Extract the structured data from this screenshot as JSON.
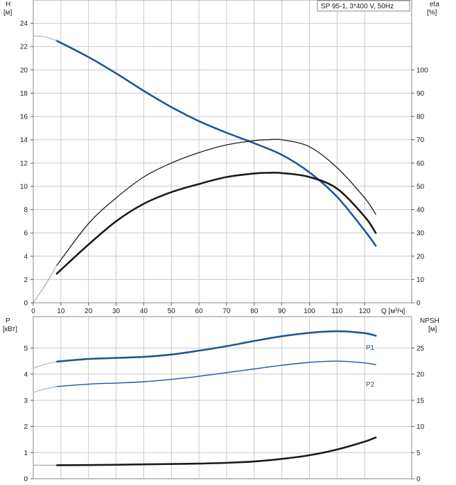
{
  "chart_data": [
    {
      "type": "line",
      "title": "SP 95-1, 3*400 V, 50Hz",
      "left_axis": {
        "label_lines": [
          "H",
          "[м]"
        ],
        "range": [
          0,
          26
        ],
        "ticks": [
          0,
          2,
          4,
          6,
          8,
          10,
          12,
          14,
          16,
          18,
          20,
          22,
          24
        ]
      },
      "right_axis": {
        "label_lines": [
          "eta",
          "[%]"
        ],
        "range": [
          0,
          130
        ],
        "ticks": [
          0,
          10,
          20,
          30,
          40,
          50,
          60,
          70,
          80,
          90,
          100
        ]
      },
      "x_axis": {
        "label": "Q [м³/ч]",
        "range": [
          0,
          137
        ],
        "ticks": [
          0,
          10,
          20,
          30,
          40,
          50,
          60,
          70,
          80,
          90,
          100,
          110,
          120
        ]
      },
      "grid": true,
      "series": [
        {
          "name": "",
          "axis": "left",
          "color": "#1f5596",
          "width": 2.6,
          "x": [
            8.5,
            20,
            30,
            40,
            50,
            60,
            70,
            80,
            90,
            100,
            110,
            120,
            124
          ],
          "y": [
            22.5,
            21.1,
            19.7,
            18.2,
            16.8,
            15.6,
            14.6,
            13.7,
            12.7,
            11.2,
            9.1,
            6.2,
            4.9
          ]
        },
        {
          "name": "",
          "axis": "left",
          "color": "#9aa8bb",
          "width": 1,
          "x": [
            0,
            4,
            8.5
          ],
          "y": [
            22.9,
            22.85,
            22.5
          ]
        },
        {
          "name": "",
          "axis": "right",
          "color": "#1a1a1a",
          "width": 1.3,
          "x": [
            8.5,
            20,
            30,
            40,
            50,
            60,
            70,
            80,
            85,
            90,
            100,
            110,
            120,
            124
          ],
          "y": [
            16,
            34,
            45,
            54,
            60,
            64.5,
            67.8,
            69.6,
            70,
            70,
            67,
            58,
            45,
            38
          ]
        },
        {
          "name": "",
          "axis": "right",
          "color": "#9a9a9a",
          "width": 1,
          "x": [
            0,
            4,
            8.5
          ],
          "y": [
            0,
            7,
            16
          ]
        },
        {
          "name": "",
          "axis": "right",
          "color": "#1a1a1a",
          "width": 2.6,
          "x": [
            8.5,
            20,
            30,
            40,
            50,
            60,
            70,
            80,
            85,
            90,
            100,
            110,
            120,
            124
          ],
          "y": [
            12.5,
            25,
            35,
            42.5,
            47.5,
            51,
            54,
            55.5,
            55.8,
            55.7,
            54,
            49,
            37,
            30
          ]
        }
      ]
    },
    {
      "type": "line",
      "left_axis": {
        "label_lines": [
          "P",
          "[кВт]"
        ],
        "range": [
          0,
          6.2
        ],
        "ticks": [
          0,
          1,
          2,
          3,
          4,
          5
        ]
      },
      "right_axis": {
        "label_lines": [
          "NPSH",
          "[м]"
        ],
        "range": [
          0,
          31
        ],
        "ticks": [
          0,
          5,
          10,
          15,
          20,
          25
        ]
      },
      "x_axis": {
        "range": [
          0,
          137
        ]
      },
      "grid": true,
      "series": [
        {
          "name": "P1",
          "axis": "left",
          "color": "#1f5596",
          "width": 2.6,
          "x": [
            8.5,
            20,
            30,
            40,
            50,
            60,
            70,
            80,
            90,
            100,
            110,
            120,
            124
          ],
          "y": [
            4.48,
            4.58,
            4.62,
            4.66,
            4.75,
            4.9,
            5.07,
            5.27,
            5.45,
            5.58,
            5.64,
            5.57,
            5.47
          ]
        },
        {
          "name": "",
          "axis": "left",
          "color": "#9aa8bb",
          "width": 1,
          "x": [
            0,
            4,
            8.5
          ],
          "y": [
            4.23,
            4.37,
            4.48
          ]
        },
        {
          "name": "P2",
          "axis": "left",
          "color": "#1f5596",
          "width": 1.4,
          "x": [
            8.5,
            20,
            30,
            40,
            50,
            60,
            70,
            80,
            90,
            100,
            110,
            120,
            124
          ],
          "y": [
            3.53,
            3.62,
            3.66,
            3.71,
            3.8,
            3.92,
            4.06,
            4.2,
            4.34,
            4.45,
            4.5,
            4.43,
            4.36
          ]
        },
        {
          "name": "",
          "axis": "left",
          "color": "#9aa8bb",
          "width": 1,
          "x": [
            0,
            4,
            8.5
          ],
          "y": [
            3.3,
            3.43,
            3.53
          ]
        },
        {
          "name": "",
          "axis": "right",
          "color": "#1a1a1a",
          "width": 2.6,
          "x": [
            8.5,
            20,
            30,
            40,
            50,
            60,
            70,
            80,
            90,
            100,
            110,
            120,
            124
          ],
          "y": [
            2.6,
            2.62,
            2.68,
            2.75,
            2.82,
            2.9,
            3.05,
            3.3,
            3.8,
            4.5,
            5.6,
            7.1,
            7.9
          ]
        },
        {
          "name": "",
          "axis": "right",
          "color": "#9a9a9a",
          "width": 1,
          "x": [
            0,
            8.5
          ],
          "y": [
            2.6,
            2.6
          ]
        }
      ]
    }
  ]
}
